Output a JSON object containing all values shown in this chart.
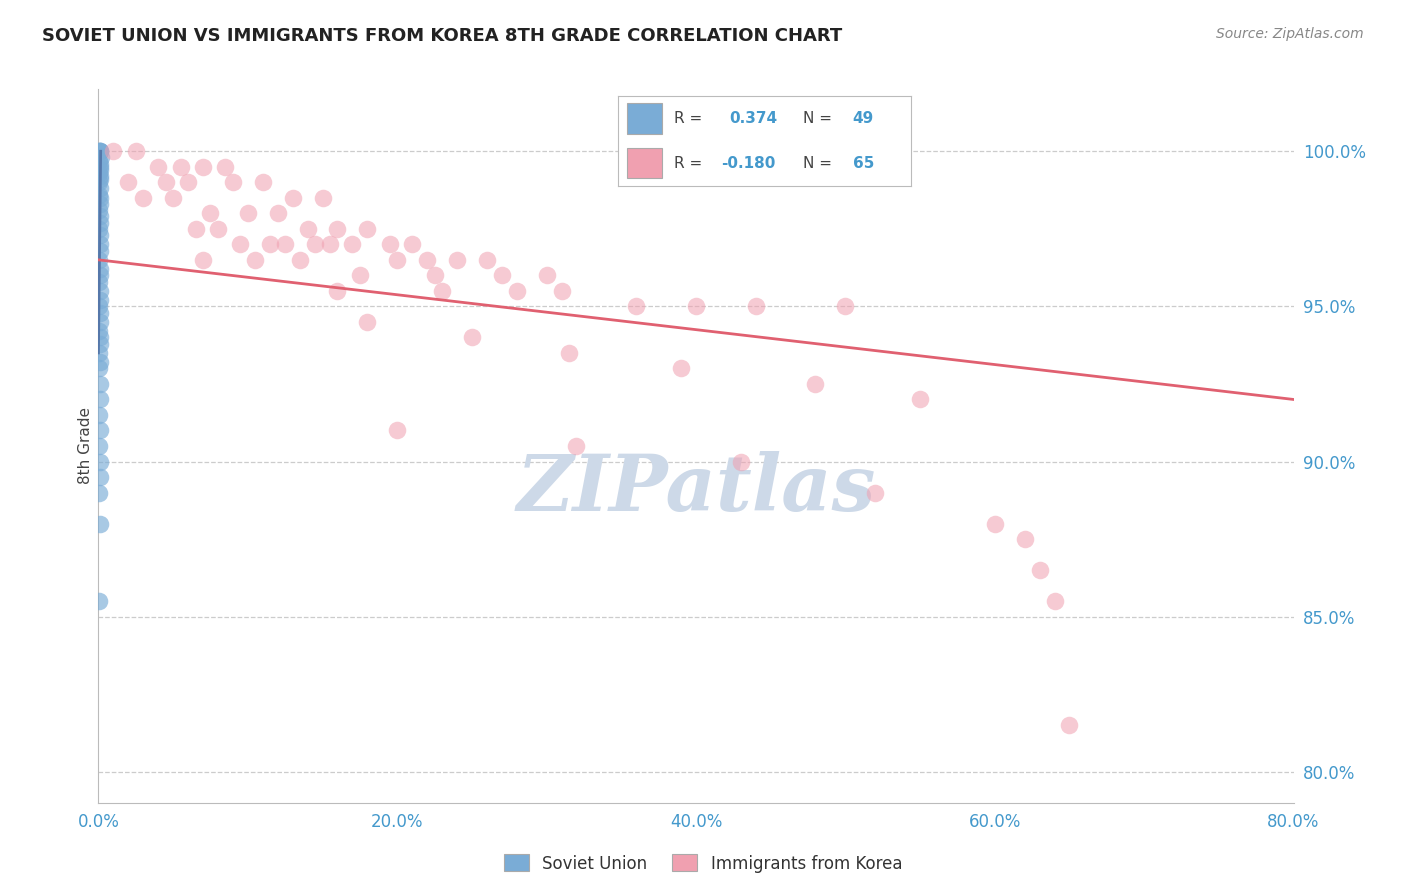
{
  "title": "SOVIET UNION VS IMMIGRANTS FROM KOREA 8TH GRADE CORRELATION CHART",
  "source": "Source: ZipAtlas.com",
  "ylabel": "8th Grade",
  "xlim": [
    0.0,
    80.0
  ],
  "ylim": [
    79.0,
    102.0
  ],
  "yticks": [
    80.0,
    85.0,
    90.0,
    95.0,
    100.0
  ],
  "ytick_labels": [
    "80.0%",
    "85.0%",
    "90.0%",
    "95.0%",
    "100.0%"
  ],
  "xticks": [
    0.0,
    20.0,
    40.0,
    60.0,
    80.0
  ],
  "xtick_labels": [
    "0.0%",
    "20.0%",
    "40.0%",
    "60.0%",
    "80.0%"
  ],
  "r_blue": "0.374",
  "n_blue": "49",
  "r_pink": "-0.180",
  "n_pink": "65",
  "blue_color": "#7aacd6",
  "pink_color": "#f0a0b0",
  "blue_line_color": "#5577aa",
  "pink_line_color": "#e06070",
  "bg_color": "#ffffff",
  "grid_color": "#cccccc",
  "watermark_text": "ZIPatlas",
  "watermark_color": "#cdd9e8",
  "title_color": "#222222",
  "axis_tick_color": "#4499cc",
  "source_color": "#888888",
  "pink_trend_x": [
    0.0,
    80.0
  ],
  "pink_trend_y": [
    96.5,
    92.0
  ],
  "soviet_x": [
    0.05,
    0.08,
    0.1,
    0.12,
    0.14,
    0.05,
    0.08,
    0.1,
    0.12,
    0.07,
    0.09,
    0.11,
    0.06,
    0.09,
    0.07,
    0.08,
    0.1,
    0.06,
    0.08,
    0.1,
    0.07,
    0.09,
    0.1,
    0.08,
    0.07,
    0.09,
    0.11,
    0.06,
    0.08,
    0.1,
    0.07,
    0.09,
    0.11,
    0.05,
    0.08,
    0.1,
    0.07,
    0.09,
    0.06,
    0.08,
    0.1,
    0.07,
    0.09,
    0.06,
    0.08,
    0.1,
    0.07,
    0.09,
    0.06
  ],
  "soviet_y": [
    100.0,
    100.0,
    100.0,
    100.0,
    99.8,
    99.7,
    99.6,
    99.5,
    99.4,
    99.3,
    99.2,
    99.1,
    99.0,
    98.8,
    98.6,
    98.5,
    98.3,
    98.1,
    97.9,
    97.7,
    97.5,
    97.3,
    97.0,
    96.8,
    96.5,
    96.2,
    96.0,
    95.8,
    95.5,
    95.2,
    95.0,
    94.8,
    94.5,
    94.2,
    94.0,
    93.8,
    93.5,
    93.2,
    93.0,
    92.5,
    92.0,
    91.5,
    91.0,
    90.5,
    90.0,
    89.5,
    89.0,
    88.0,
    85.5
  ],
  "korea_x": [
    1.0,
    2.5,
    4.0,
    5.5,
    7.0,
    8.5,
    2.0,
    4.5,
    6.0,
    9.0,
    11.0,
    13.0,
    15.0,
    3.0,
    5.0,
    7.5,
    10.0,
    12.0,
    14.0,
    16.0,
    18.0,
    6.5,
    8.0,
    11.5,
    14.5,
    17.0,
    19.5,
    21.0,
    9.5,
    12.5,
    15.5,
    20.0,
    22.0,
    24.0,
    26.0,
    7.0,
    10.5,
    13.5,
    17.5,
    22.5,
    27.0,
    30.0,
    16.0,
    23.0,
    28.0,
    31.0,
    36.0,
    40.0,
    44.0,
    50.0,
    18.0,
    25.0,
    31.5,
    39.0,
    48.0,
    55.0,
    20.0,
    32.0,
    43.0,
    52.0,
    60.0,
    62.0,
    63.0,
    64.0,
    65.0
  ],
  "korea_y": [
    100.0,
    100.0,
    99.5,
    99.5,
    99.5,
    99.5,
    99.0,
    99.0,
    99.0,
    99.0,
    99.0,
    98.5,
    98.5,
    98.5,
    98.5,
    98.0,
    98.0,
    98.0,
    97.5,
    97.5,
    97.5,
    97.5,
    97.5,
    97.0,
    97.0,
    97.0,
    97.0,
    97.0,
    97.0,
    97.0,
    97.0,
    96.5,
    96.5,
    96.5,
    96.5,
    96.5,
    96.5,
    96.5,
    96.0,
    96.0,
    96.0,
    96.0,
    95.5,
    95.5,
    95.5,
    95.5,
    95.0,
    95.0,
    95.0,
    95.0,
    94.5,
    94.0,
    93.5,
    93.0,
    92.5,
    92.0,
    91.0,
    90.5,
    90.0,
    89.0,
    88.0,
    87.5,
    86.5,
    85.5,
    81.5
  ]
}
